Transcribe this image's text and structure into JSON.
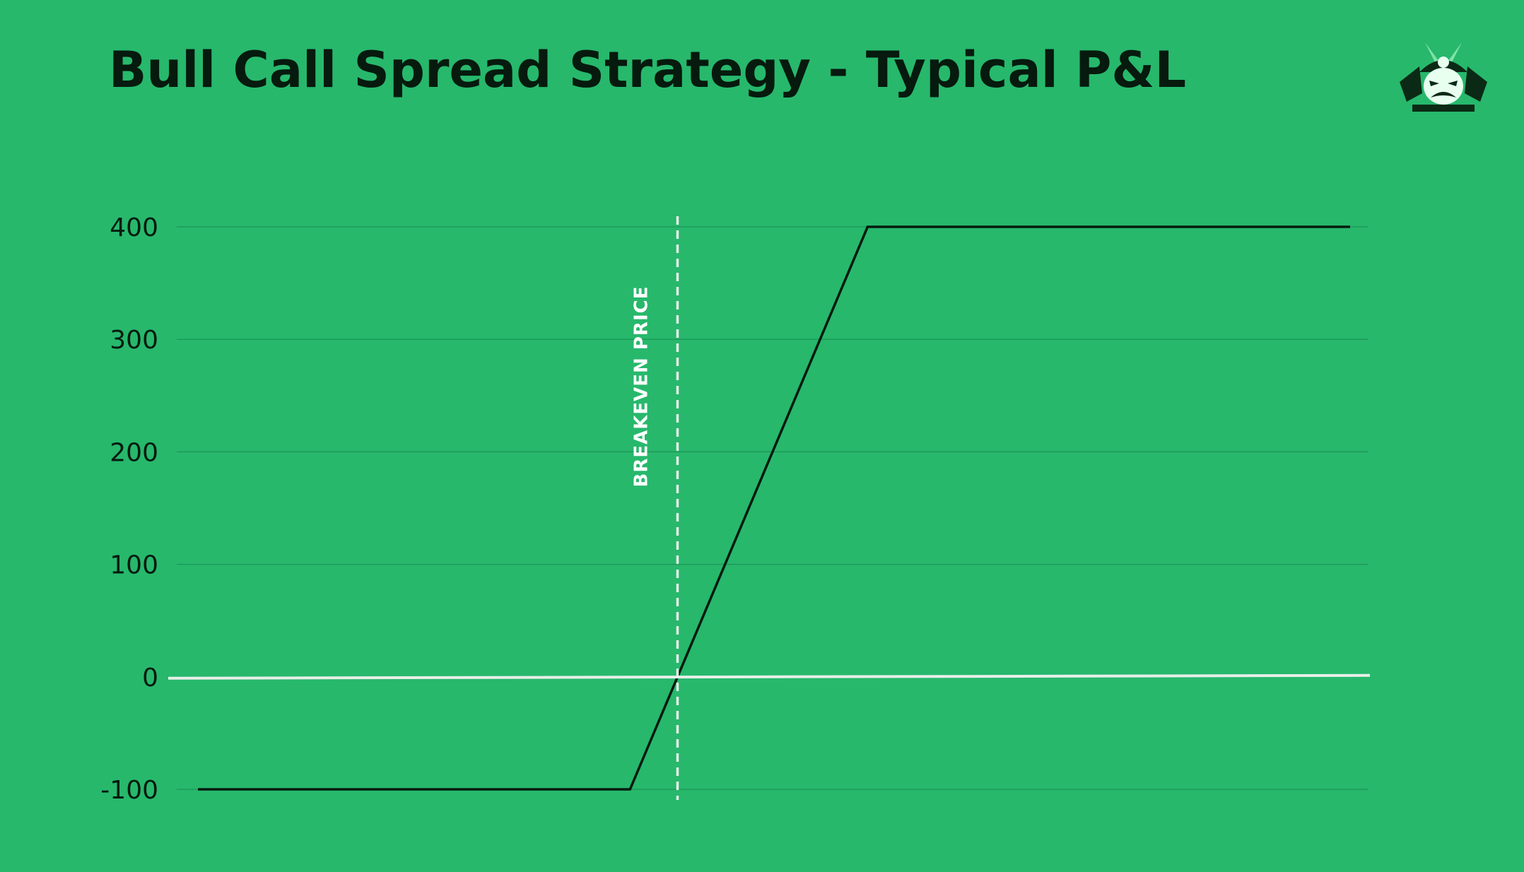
{
  "chart_data": {
    "type": "line",
    "title": "Bull Call Spread Strategy - Typical P&L",
    "xlabel": "",
    "ylabel": "",
    "ylim": [
      -100,
      400
    ],
    "yticks": [
      -100,
      0,
      100,
      200,
      300,
      400
    ],
    "grid": true,
    "legend": "none",
    "series": [
      {
        "x": [
          0,
          3,
          4.65,
          8
        ],
        "values": [
          -100,
          -100,
          400,
          400
        ]
      }
    ],
    "zero_line": 0,
    "breakeven": {
      "x": 3.33,
      "label": "BREAKEVEN PRICE"
    }
  },
  "logo": {
    "icon": "samurai-helmet-icon"
  },
  "colors": {
    "background": "#27b86c",
    "line": "#061a0e",
    "gridline": "#1f9a58",
    "zero_line": "#e8efe9",
    "breakeven_line": "#e8efe9",
    "logo_dark": "#0b2a15",
    "logo_accent": "#7ee3a8"
  }
}
